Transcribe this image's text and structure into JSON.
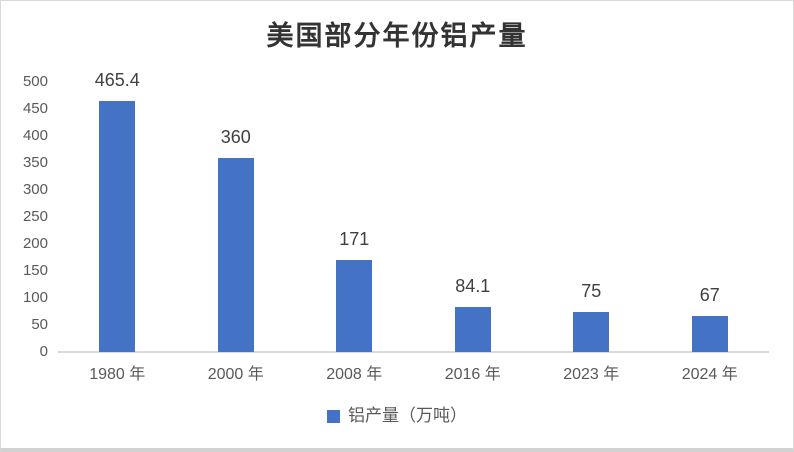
{
  "chart_data": {
    "type": "bar",
    "title": "美国部分年份铝产量",
    "categories": [
      "1980 年",
      "2000 年",
      "2008 年",
      "2016 年",
      "2023 年",
      "2024 年"
    ],
    "series": [
      {
        "name": "铝产量（万吨）",
        "values": [
          465.4,
          360,
          171,
          84.1,
          75,
          67
        ]
      }
    ],
    "data_labels": [
      "465.4",
      "360",
      "171",
      "84.1",
      "75",
      "67"
    ],
    "xlabel": "",
    "ylabel": "",
    "ylim": [
      0,
      500
    ],
    "ytick_step": 50,
    "yticks": [
      500,
      450,
      400,
      350,
      300,
      250,
      200,
      150,
      100,
      50,
      0
    ],
    "grid": false,
    "legend_position": "bottom",
    "colors": {
      "bar": "#4472C4",
      "axis_line": "#d9d9d9",
      "tick_text": "#595959",
      "data_label_text": "#404040",
      "title_text": "#333333"
    }
  },
  "legend": {
    "marker": "square-icon",
    "marker_color": "#4472C4",
    "label": "铝产量（万吨）"
  }
}
